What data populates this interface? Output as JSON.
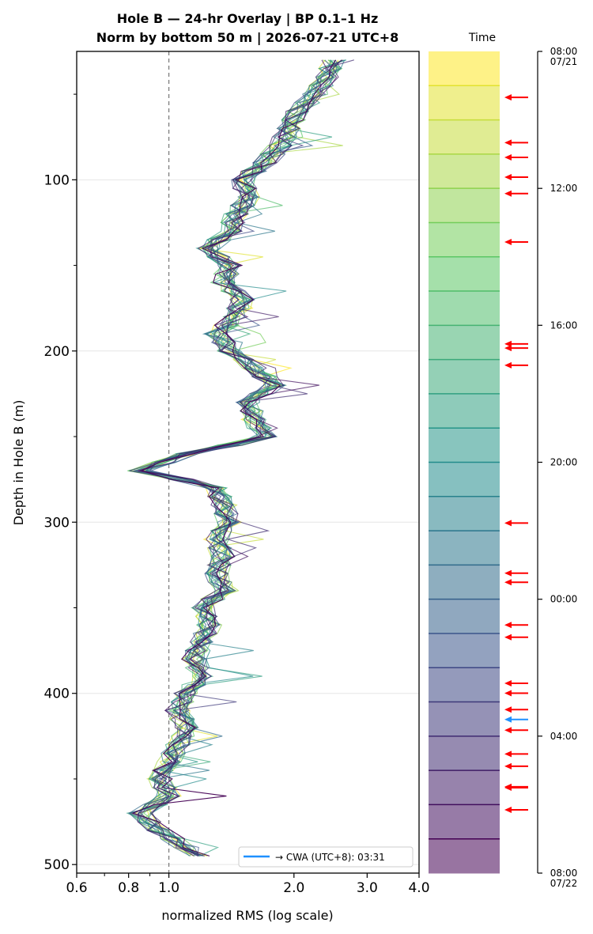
{
  "chart_data": {
    "type": "line",
    "title_line1": "Hole B — 24-hr Overlay  |  BP 0.1–1 Hz",
    "title_line2": "Norm by bottom 50 m  |  2026-07-21 UTC+8",
    "xlabel": "normalized RMS  (log scale)",
    "ylabel": "Depth in Hole B (m)",
    "x_scale": "log",
    "xlim": [
      0.6,
      4.0
    ],
    "ylim": [
      505,
      25
    ],
    "x_ticks": [
      {
        "value": 0.6,
        "label": "0.6"
      },
      {
        "value": 0.8,
        "label": "0.8"
      },
      {
        "value": 1.0,
        "label": "1.0"
      },
      {
        "value": 2.0,
        "label": "2.0"
      },
      {
        "value": 3.0,
        "label": "3.0"
      },
      {
        "value": 4.0,
        "label": "4.0"
      }
    ],
    "y_ticks": [
      {
        "value": 100,
        "label": "100"
      },
      {
        "value": 200,
        "label": "200"
      },
      {
        "value": 300,
        "label": "300"
      },
      {
        "value": 400,
        "label": "400"
      },
      {
        "value": 500,
        "label": "500"
      }
    ],
    "reference_line_x": 1.0,
    "grid": "horizontal",
    "legend_position": "bottom-right",
    "legend_label": "→ CWA (UTC+8): 03:31",
    "legend_color": "#1e90ff",
    "colormap": "viridis",
    "n_curves": 24,
    "profile_mean": [
      [
        30,
        2.5
      ],
      [
        40,
        2.4
      ],
      [
        50,
        2.25
      ],
      [
        60,
        2.05
      ],
      [
        70,
        1.95
      ],
      [
        80,
        1.85
      ],
      [
        90,
        1.7
      ],
      [
        100,
        1.5
      ],
      [
        110,
        1.55
      ],
      [
        120,
        1.45
      ],
      [
        130,
        1.4
      ],
      [
        140,
        1.25
      ],
      [
        150,
        1.4
      ],
      [
        160,
        1.35
      ],
      [
        170,
        1.5
      ],
      [
        180,
        1.45
      ],
      [
        190,
        1.3
      ],
      [
        200,
        1.4
      ],
      [
        210,
        1.6
      ],
      [
        220,
        1.8
      ],
      [
        230,
        1.55
      ],
      [
        240,
        1.6
      ],
      [
        250,
        1.7
      ],
      [
        260,
        1.1
      ],
      [
        270,
        0.85
      ],
      [
        280,
        1.3
      ],
      [
        290,
        1.35
      ],
      [
        300,
        1.4
      ],
      [
        310,
        1.3
      ],
      [
        320,
        1.35
      ],
      [
        330,
        1.3
      ],
      [
        340,
        1.35
      ],
      [
        350,
        1.2
      ],
      [
        360,
        1.25
      ],
      [
        370,
        1.2
      ],
      [
        380,
        1.15
      ],
      [
        390,
        1.2
      ],
      [
        400,
        1.1
      ],
      [
        410,
        1.05
      ],
      [
        420,
        1.1
      ],
      [
        430,
        1.05
      ],
      [
        440,
        1.0
      ],
      [
        450,
        0.95
      ],
      [
        460,
        1.0
      ],
      [
        470,
        0.85
      ],
      [
        480,
        0.95
      ],
      [
        490,
        1.1
      ],
      [
        495,
        1.2
      ]
    ],
    "colorbar": {
      "label": "Time",
      "n_bands": 24,
      "ticks": [
        {
          "frac": 0.0,
          "line1": "08:00",
          "line2": "07/21"
        },
        {
          "frac": 0.1667,
          "line1": "12:00",
          "line2": ""
        },
        {
          "frac": 0.3333,
          "line1": "16:00",
          "line2": ""
        },
        {
          "frac": 0.5,
          "line1": "20:00",
          "line2": ""
        },
        {
          "frac": 0.6667,
          "line1": "00:00",
          "line2": ""
        },
        {
          "frac": 0.8333,
          "line1": "04:00",
          "line2": ""
        },
        {
          "frac": 1.0,
          "line1": "08:00",
          "line2": "07/22"
        }
      ],
      "event_fracs_red": [
        0.056,
        0.111,
        0.129,
        0.153,
        0.173,
        0.232,
        0.356,
        0.361,
        0.382,
        0.574,
        0.635,
        0.646,
        0.698,
        0.713,
        0.769,
        0.781,
        0.801,
        0.826,
        0.855,
        0.87,
        0.895,
        0.896,
        0.923
      ],
      "event_fracs_blue": [
        0.813
      ]
    }
  }
}
